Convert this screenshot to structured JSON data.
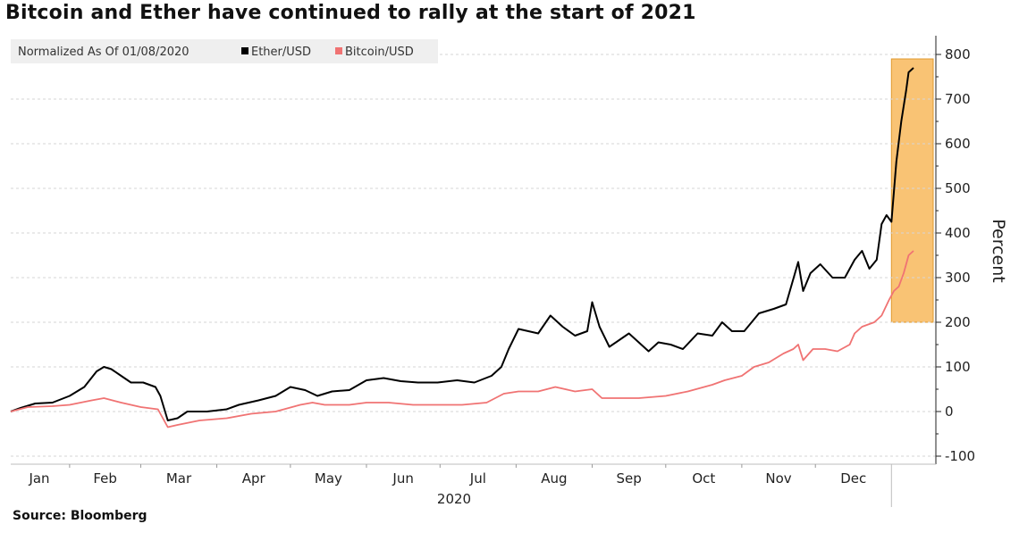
{
  "title": "Bitcoin and Ether have continued to rally at the start of 2021",
  "source": "Source: Bloomberg",
  "legend": {
    "normalization": "Normalized As Of 01/08/2020",
    "items": [
      {
        "label": "Ether/USD",
        "color": "#000000"
      },
      {
        "label": "Bitcoin/USD",
        "color": "#f07373"
      }
    ]
  },
  "colors": {
    "highlight_fill": "#f8b95c",
    "highlight_stroke": "#e09a2e",
    "gridline": "#d6d6d6"
  },
  "chart_data": {
    "type": "line",
    "ylabel": "Percent",
    "year_label": "2020",
    "ylim": [
      -100,
      800
    ],
    "y_ticks": [
      -100,
      0,
      100,
      200,
      300,
      400,
      500,
      600,
      700,
      800
    ],
    "x_months": [
      "Jan",
      "Feb",
      "Mar",
      "Apr",
      "May",
      "Jun",
      "Jul",
      "Aug",
      "Sep",
      "Oct",
      "Nov",
      "Dec"
    ],
    "x_domain": [
      "2020-01-08",
      "2021-01-10"
    ],
    "highlight": {
      "x_start": "2021-01-01",
      "x_end": "2021-01-10",
      "y_start": 200,
      "y_end": 790
    },
    "grid": true,
    "legend_position": "top-left",
    "series": [
      {
        "name": "Ether/USD",
        "color": "#000000",
        "points": [
          [
            "2020-01-08",
            0
          ],
          [
            "2020-01-12",
            8
          ],
          [
            "2020-01-18",
            18
          ],
          [
            "2020-01-25",
            20
          ],
          [
            "2020-02-01",
            35
          ],
          [
            "2020-02-07",
            55
          ],
          [
            "2020-02-12",
            90
          ],
          [
            "2020-02-15",
            100
          ],
          [
            "2020-02-18",
            95
          ],
          [
            "2020-02-22",
            80
          ],
          [
            "2020-02-26",
            65
          ],
          [
            "2020-03-02",
            65
          ],
          [
            "2020-03-07",
            55
          ],
          [
            "2020-03-09",
            35
          ],
          [
            "2020-03-12",
            -20
          ],
          [
            "2020-03-16",
            -15
          ],
          [
            "2020-03-20",
            0
          ],
          [
            "2020-03-28",
            0
          ],
          [
            "2020-04-05",
            5
          ],
          [
            "2020-04-10",
            15
          ],
          [
            "2020-04-18",
            25
          ],
          [
            "2020-04-25",
            35
          ],
          [
            "2020-05-01",
            55
          ],
          [
            "2020-05-07",
            48
          ],
          [
            "2020-05-12",
            35
          ],
          [
            "2020-05-18",
            45
          ],
          [
            "2020-05-25",
            48
          ],
          [
            "2020-06-01",
            70
          ],
          [
            "2020-06-08",
            75
          ],
          [
            "2020-06-15",
            68
          ],
          [
            "2020-06-22",
            65
          ],
          [
            "2020-06-30",
            65
          ],
          [
            "2020-07-08",
            70
          ],
          [
            "2020-07-15",
            65
          ],
          [
            "2020-07-22",
            80
          ],
          [
            "2020-07-26",
            100
          ],
          [
            "2020-07-29",
            140
          ],
          [
            "2020-08-02",
            185
          ],
          [
            "2020-08-06",
            180
          ],
          [
            "2020-08-10",
            175
          ],
          [
            "2020-08-15",
            215
          ],
          [
            "2020-08-20",
            190
          ],
          [
            "2020-08-25",
            170
          ],
          [
            "2020-08-30",
            180
          ],
          [
            "2020-09-01",
            245
          ],
          [
            "2020-09-04",
            190
          ],
          [
            "2020-09-08",
            145
          ],
          [
            "2020-09-12",
            160
          ],
          [
            "2020-09-16",
            175
          ],
          [
            "2020-09-20",
            155
          ],
          [
            "2020-09-24",
            135
          ],
          [
            "2020-09-28",
            155
          ],
          [
            "2020-10-03",
            150
          ],
          [
            "2020-10-08",
            140
          ],
          [
            "2020-10-14",
            175
          ],
          [
            "2020-10-20",
            170
          ],
          [
            "2020-10-24",
            200
          ],
          [
            "2020-10-28",
            180
          ],
          [
            "2020-11-02",
            180
          ],
          [
            "2020-11-08",
            220
          ],
          [
            "2020-11-14",
            230
          ],
          [
            "2020-11-19",
            240
          ],
          [
            "2020-11-24",
            335
          ],
          [
            "2020-11-26",
            270
          ],
          [
            "2020-11-29",
            310
          ],
          [
            "2020-12-03",
            330
          ],
          [
            "2020-12-08",
            300
          ],
          [
            "2020-12-13",
            300
          ],
          [
            "2020-12-17",
            340
          ],
          [
            "2020-12-20",
            360
          ],
          [
            "2020-12-23",
            320
          ],
          [
            "2020-12-26",
            340
          ],
          [
            "2020-12-28",
            420
          ],
          [
            "2020-12-30",
            440
          ],
          [
            "2021-01-01",
            425
          ],
          [
            "2021-01-03",
            560
          ],
          [
            "2021-01-05",
            650
          ],
          [
            "2021-01-07",
            720
          ],
          [
            "2021-01-08",
            760
          ],
          [
            "2021-01-10",
            770
          ]
        ]
      },
      {
        "name": "Bitcoin/USD",
        "color": "#f07373",
        "points": [
          [
            "2020-01-08",
            0
          ],
          [
            "2020-01-15",
            10
          ],
          [
            "2020-01-25",
            12
          ],
          [
            "2020-02-01",
            15
          ],
          [
            "2020-02-10",
            25
          ],
          [
            "2020-02-15",
            30
          ],
          [
            "2020-02-22",
            20
          ],
          [
            "2020-03-01",
            10
          ],
          [
            "2020-03-08",
            5
          ],
          [
            "2020-03-12",
            -35
          ],
          [
            "2020-03-16",
            -30
          ],
          [
            "2020-03-25",
            -20
          ],
          [
            "2020-04-05",
            -15
          ],
          [
            "2020-04-15",
            -5
          ],
          [
            "2020-04-25",
            0
          ],
          [
            "2020-05-05",
            15
          ],
          [
            "2020-05-10",
            20
          ],
          [
            "2020-05-15",
            15
          ],
          [
            "2020-05-25",
            15
          ],
          [
            "2020-06-01",
            20
          ],
          [
            "2020-06-10",
            20
          ],
          [
            "2020-06-20",
            15
          ],
          [
            "2020-06-30",
            15
          ],
          [
            "2020-07-10",
            15
          ],
          [
            "2020-07-20",
            20
          ],
          [
            "2020-07-27",
            40
          ],
          [
            "2020-08-02",
            45
          ],
          [
            "2020-08-10",
            45
          ],
          [
            "2020-08-17",
            55
          ],
          [
            "2020-08-25",
            45
          ],
          [
            "2020-09-01",
            50
          ],
          [
            "2020-09-05",
            30
          ],
          [
            "2020-09-12",
            30
          ],
          [
            "2020-09-20",
            30
          ],
          [
            "2020-10-01",
            35
          ],
          [
            "2020-10-10",
            45
          ],
          [
            "2020-10-20",
            60
          ],
          [
            "2020-10-25",
            70
          ],
          [
            "2020-11-01",
            80
          ],
          [
            "2020-11-06",
            100
          ],
          [
            "2020-11-12",
            110
          ],
          [
            "2020-11-18",
            130
          ],
          [
            "2020-11-22",
            140
          ],
          [
            "2020-11-24",
            150
          ],
          [
            "2020-11-26",
            115
          ],
          [
            "2020-11-30",
            140
          ],
          [
            "2020-12-05",
            140
          ],
          [
            "2020-12-10",
            135
          ],
          [
            "2020-12-15",
            150
          ],
          [
            "2020-12-17",
            175
          ],
          [
            "2020-12-20",
            190
          ],
          [
            "2020-12-25",
            200
          ],
          [
            "2020-12-28",
            215
          ],
          [
            "2020-12-31",
            250
          ],
          [
            "2021-01-02",
            270
          ],
          [
            "2021-01-04",
            280
          ],
          [
            "2021-01-06",
            310
          ],
          [
            "2021-01-08",
            350
          ],
          [
            "2021-01-10",
            360
          ]
        ]
      }
    ]
  }
}
